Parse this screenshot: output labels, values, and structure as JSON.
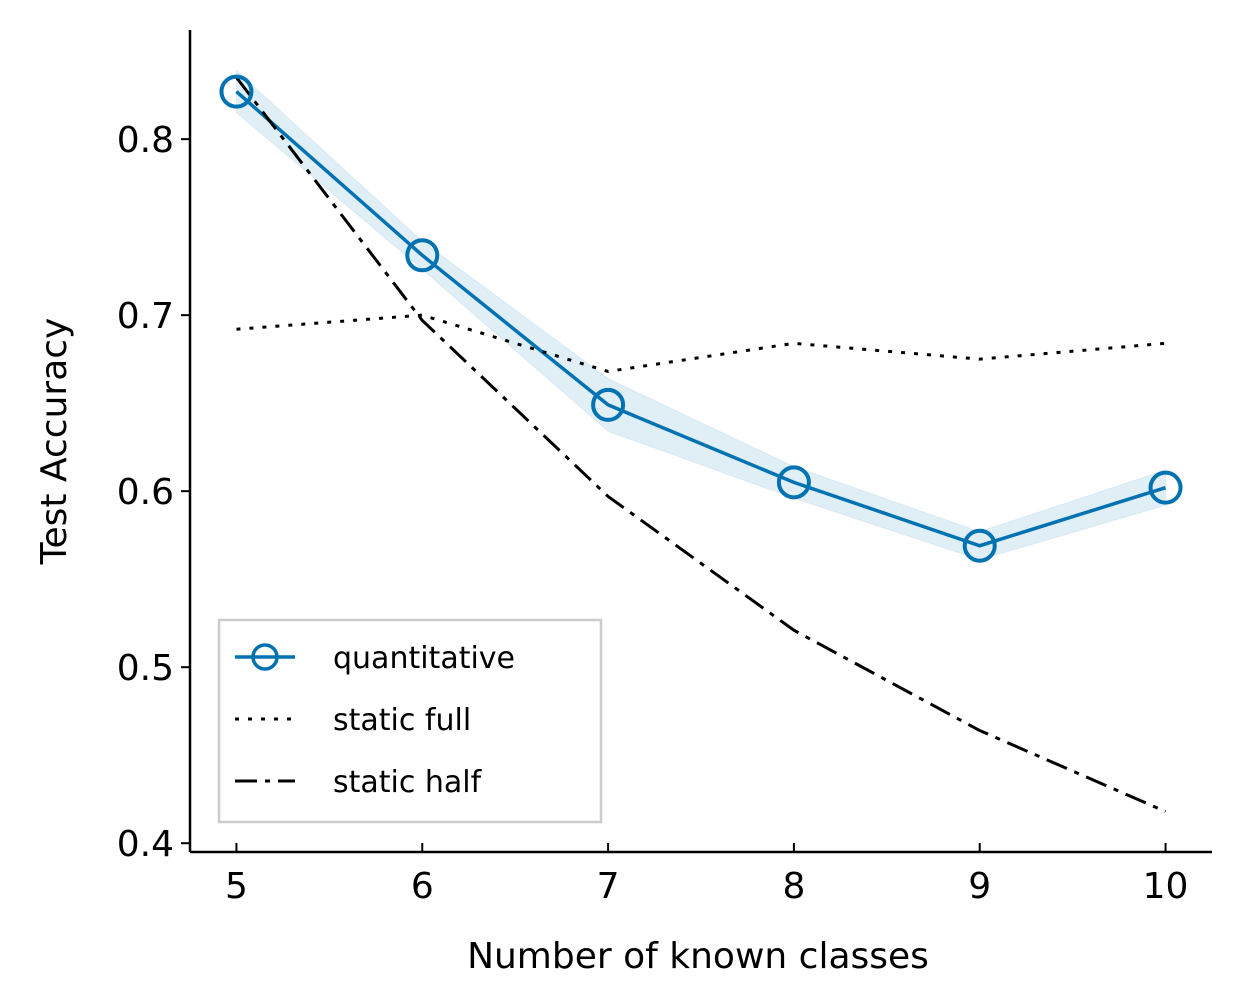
{
  "chart_data": {
    "type": "line",
    "title": "",
    "xlabel": "Number of known classes",
    "ylabel": "Test Accuracy",
    "x": [
      5,
      6,
      7,
      8,
      9,
      10
    ],
    "xlim": [
      4.75,
      10.25
    ],
    "ylim": [
      0.395,
      0.862
    ],
    "x_ticks": [
      5,
      6,
      7,
      8,
      9,
      10
    ],
    "x_tick_labels": [
      "5",
      "6",
      "7",
      "8",
      "9",
      "10"
    ],
    "y_ticks": [
      0.4,
      0.5,
      0.6,
      0.7,
      0.8
    ],
    "y_tick_labels": [
      "0.4",
      "0.5",
      "0.6",
      "0.7",
      "0.8"
    ],
    "grid": false,
    "legend_position": "lower-left",
    "series": [
      {
        "name": "quantitative",
        "values": [
          0.827,
          0.734,
          0.649,
          0.605,
          0.569,
          0.602
        ],
        "band_lower": [
          0.815,
          0.726,
          0.634,
          0.596,
          0.561,
          0.592
        ],
        "band_upper": [
          0.839,
          0.742,
          0.664,
          0.614,
          0.577,
          0.612
        ],
        "color": "#0072b2",
        "style": "solid",
        "marker": "open-circle"
      },
      {
        "name": "static full",
        "values": [
          0.692,
          0.7,
          0.668,
          0.684,
          0.675,
          0.684
        ],
        "color": "#000000",
        "style": "dotted"
      },
      {
        "name": "static half",
        "values": [
          0.835,
          0.697,
          0.597,
          0.521,
          0.464,
          0.418
        ],
        "color": "#000000",
        "style": "dashdot"
      }
    ]
  }
}
